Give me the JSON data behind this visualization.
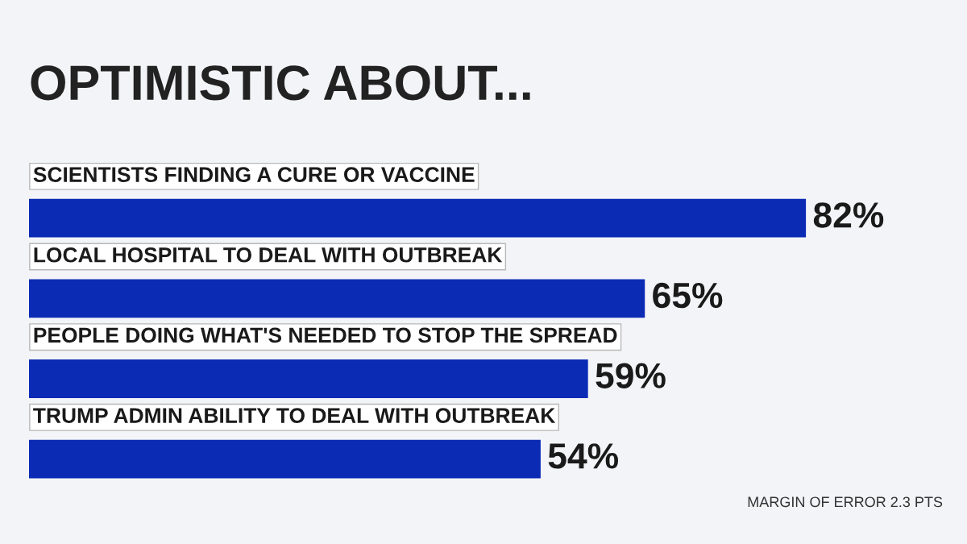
{
  "chart_data": {
    "type": "bar",
    "orientation": "horizontal",
    "title": "OPTIMISTIC ABOUT...",
    "categories": [
      "SCIENTISTS FINDING A CURE OR VACCINE",
      "LOCAL HOSPITAL TO DEAL WITH OUTBREAK",
      "PEOPLE DOING WHAT'S NEEDED TO STOP THE SPREAD",
      "TRUMP ADMIN ABILITY TO DEAL WITH OUTBREAK"
    ],
    "values": [
      82,
      65,
      59,
      54
    ],
    "value_labels": [
      "82%",
      "65%",
      "59%",
      "54%"
    ],
    "color": "#0b2bb5",
    "annotations": [
      "MARGIN OF ERROR 2.3 PTS"
    ]
  }
}
